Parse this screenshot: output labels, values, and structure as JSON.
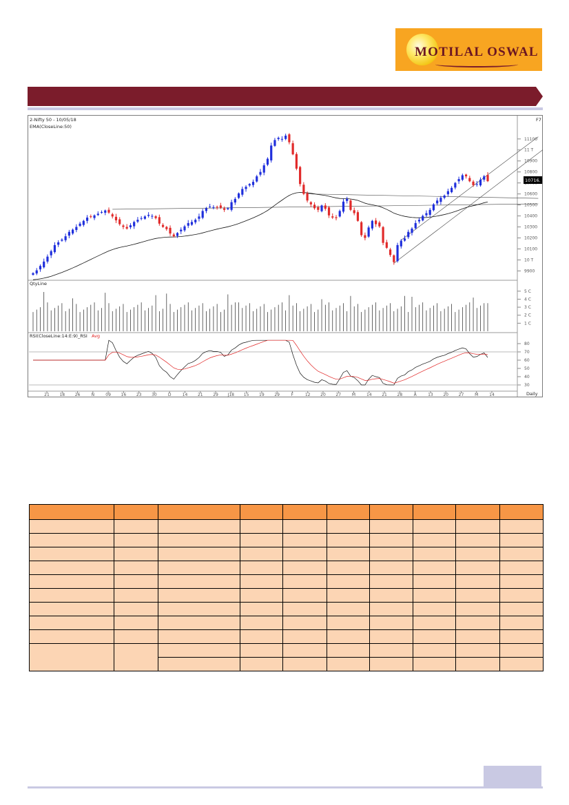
{
  "logo": {
    "brand": "MOTILAL OSWAL"
  },
  "banner": {
    "title": ""
  },
  "chart": {
    "instrument_label": "2-Nifty 50 - 10/05/18",
    "ema_label": "EMA(CloseLine:50)",
    "last_price_tag": "10716.",
    "corner_label": "F7",
    "price_ticks": [
      "11100",
      "11 T",
      "10900",
      "10800",
      "10700",
      "10600",
      "10500",
      "10400",
      "10300",
      "10200",
      "10100",
      "10 T",
      "9900"
    ],
    "volume_label": "QtyLine",
    "volume_ticks": [
      "5 C",
      "4 C",
      "3 C",
      "2 C",
      "1 C"
    ],
    "rsi_label": "RSI(CloseLine:14:E:9)_RSI",
    "rsi_avg_label": "Avg",
    "rsi_ticks": [
      "80",
      "70",
      "60",
      "50",
      "40",
      "30"
    ],
    "x_labels": [
      "21",
      "18",
      "26",
      "N",
      "09",
      "16",
      "23",
      "30",
      "D",
      "14",
      "21",
      "29",
      "J18",
      "15",
      "19",
      "29",
      "F",
      "12",
      "20",
      "27",
      "M",
      "14",
      "21",
      "28",
      "A",
      "13",
      "20",
      "27",
      "M",
      "14"
    ],
    "period_label": "Daily",
    "colors": {
      "up": "#1f2fdc",
      "down": "#e12a2a",
      "ema": "#111111",
      "rsi": "#111111",
      "rsi_avg": "#e02020",
      "grid": "#cfcfcf"
    }
  },
  "chart_data": {
    "type": "candlestick",
    "title": "2-Nifty 50 - 10/05/18",
    "indicators": [
      "EMA(CloseLine:50)",
      "QtyLine",
      "RSI(CloseLine:14:E:9)_RSI",
      "Avg"
    ],
    "last_close": 10716,
    "close": [
      9880,
      9905,
      9945,
      9985,
      10030,
      10080,
      10135,
      10160,
      10185,
      10215,
      10255,
      10275,
      10300,
      10330,
      10355,
      10385,
      10390,
      10405,
      10420,
      10435,
      10450,
      10430,
      10395,
      10360,
      10325,
      10300,
      10285,
      10315,
      10345,
      10365,
      10380,
      10395,
      10410,
      10400,
      10380,
      10330,
      10300,
      10280,
      10240,
      10215,
      10245,
      10275,
      10305,
      10335,
      10345,
      10365,
      10395,
      10445,
      10470,
      10485,
      10480,
      10480,
      10475,
      10455,
      10470,
      10525,
      10555,
      10605,
      10645,
      10665,
      10690,
      10710,
      10760,
      10800,
      10860,
      10920,
      11040,
      11090,
      11110,
      11100,
      11130,
      11070,
      10960,
      10830,
      10690,
      10600,
      10540,
      10505,
      10470,
      10455,
      10495,
      10465,
      10405,
      10385,
      10380,
      10445,
      10530,
      10555,
      10455,
      10425,
      10355,
      10225,
      10200,
      10295,
      10355,
      10325,
      10305,
      10155,
      10110,
      10045,
      9980,
      10135,
      10175,
      10195,
      10255,
      10285,
      10335,
      10365,
      10400,
      10425,
      10455,
      10505,
      10540,
      10565,
      10585,
      10625,
      10655,
      10700,
      10735,
      10770,
      10760,
      10715,
      10680,
      10690,
      10730,
      10760,
      10716
    ]
  }
}
